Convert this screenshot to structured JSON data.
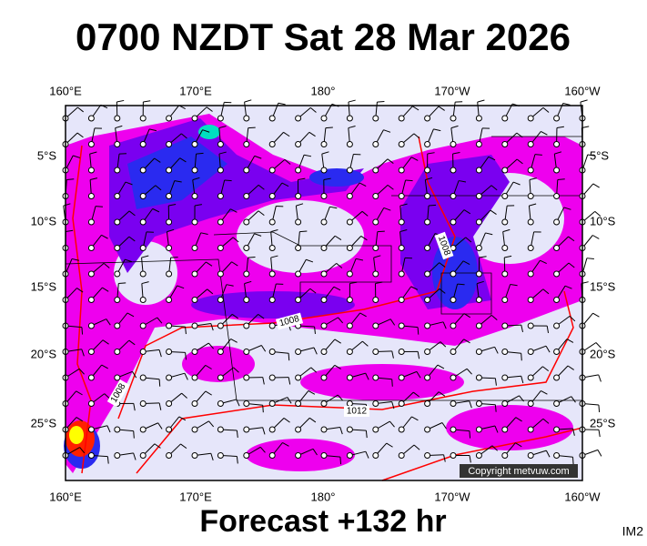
{
  "header": {
    "title": "0700 NZDT Sat 28 Mar 2026"
  },
  "map": {
    "lon_labels": [
      "160°E",
      "170°E",
      "180°",
      "170°W",
      "160°W"
    ],
    "lat_labels": [
      "5°S",
      "10°S",
      "15°S",
      "20°S",
      "25°S"
    ],
    "isobar_labels": [
      "1008",
      "1008",
      "1008",
      "1012"
    ],
    "copyright": "Copyright metvuw.com"
  },
  "footer": {
    "forecast": "Forecast +132 hr",
    "image_id": "IM2"
  }
}
